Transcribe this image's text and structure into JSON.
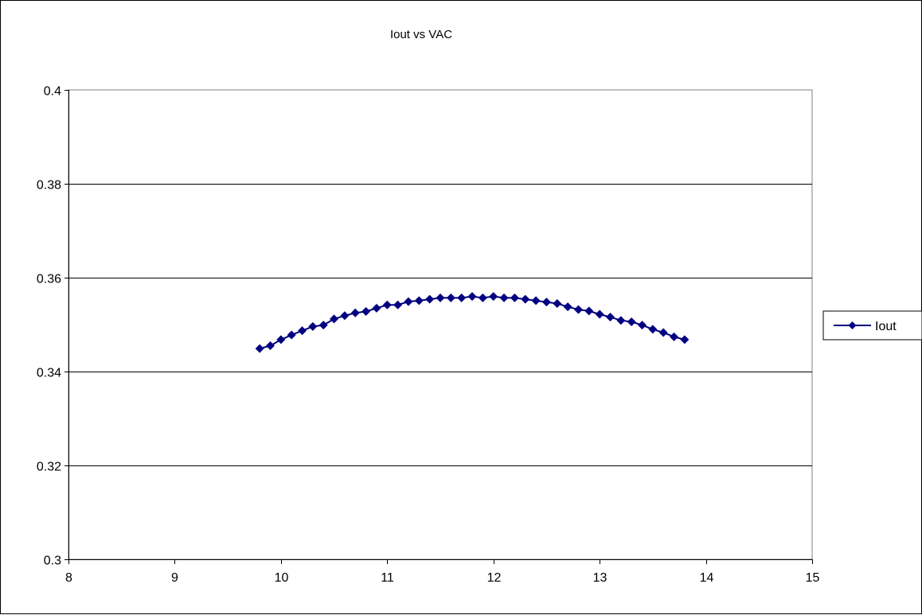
{
  "chart_data": {
    "type": "line",
    "title": "Iout vs VAC",
    "xlabel": "",
    "ylabel": "",
    "xlim": [
      8,
      15
    ],
    "ylim": [
      0.3,
      0.4
    ],
    "x_ticks": [
      8,
      9,
      10,
      11,
      12,
      13,
      14,
      15
    ],
    "y_ticks": [
      0.3,
      0.32,
      0.34,
      0.36,
      0.38,
      0.4
    ],
    "x_tick_labels": [
      "8",
      "9",
      "10",
      "11",
      "12",
      "13",
      "14",
      "15"
    ],
    "y_tick_labels": [
      "0.3",
      "0.32",
      "0.34",
      "0.36",
      "0.38",
      "0.4"
    ],
    "grid": "horizontal major gridlines",
    "legend_position": "right",
    "marker": "diamond",
    "series": [
      {
        "name": "Iout",
        "color": "#000080",
        "x": [
          9.8,
          9.9,
          10.0,
          10.1,
          10.2,
          10.3,
          10.4,
          10.5,
          10.6,
          10.7,
          10.8,
          10.9,
          11.0,
          11.1,
          11.2,
          11.3,
          11.4,
          11.5,
          11.6,
          11.7,
          11.8,
          11.9,
          12.0,
          12.1,
          12.2,
          12.3,
          12.4,
          12.5,
          12.6,
          12.7,
          12.8,
          12.9,
          13.0,
          13.1,
          13.2,
          13.3,
          13.4,
          13.5,
          13.6,
          13.7,
          13.8
        ],
        "y": [
          0.3449,
          0.3455,
          0.3468,
          0.3478,
          0.3487,
          0.3496,
          0.3499,
          0.3512,
          0.3519,
          0.3525,
          0.3528,
          0.3535,
          0.3542,
          0.3542,
          0.3549,
          0.3551,
          0.3554,
          0.3557,
          0.3557,
          0.3557,
          0.356,
          0.3557,
          0.356,
          0.3557,
          0.3557,
          0.3554,
          0.3551,
          0.3548,
          0.3545,
          0.3538,
          0.3532,
          0.3529,
          0.3522,
          0.3516,
          0.3509,
          0.3506,
          0.3499,
          0.349,
          0.3483,
          0.3474,
          0.3468
        ]
      }
    ]
  }
}
